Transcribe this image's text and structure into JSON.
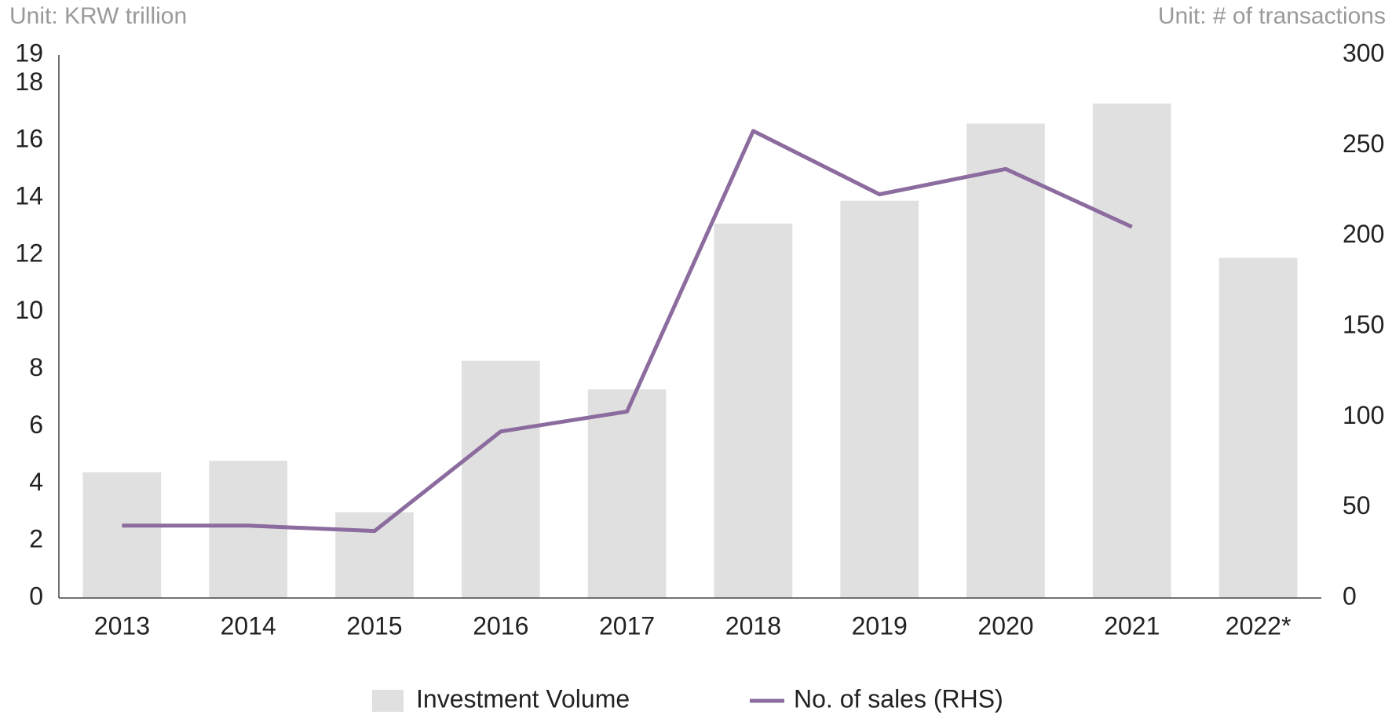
{
  "chart_data": {
    "type": "bar-line",
    "y_unit_label": "Unit: KRW trillion",
    "y2_unit_label": "Unit: # of transactions",
    "categories": [
      "2013",
      "2014",
      "2015",
      "2016",
      "2017",
      "2018",
      "2019",
      "2020",
      "2021",
      "2022*"
    ],
    "series": [
      {
        "name": "Investment Volume",
        "type": "bar",
        "color": "#e0e0e0",
        "values": [
          4.4,
          4.8,
          3.0,
          8.3,
          7.3,
          13.1,
          13.9,
          16.6,
          17.3,
          11.9
        ]
      },
      {
        "name": "No. of sales (RHS)",
        "type": "line",
        "axis": "y2",
        "color": "#8c6c9e",
        "values": [
          40,
          40,
          37,
          92,
          103,
          258,
          223,
          237,
          205,
          null
        ]
      }
    ],
    "ylim": [
      0,
      19
    ],
    "yticks": [
      0,
      2,
      4,
      6,
      8,
      10,
      12,
      14,
      16,
      18,
      19
    ],
    "y2lim": [
      0,
      300
    ],
    "y2ticks": [
      0,
      50,
      100,
      150,
      200,
      250,
      300
    ],
    "grid": false
  }
}
